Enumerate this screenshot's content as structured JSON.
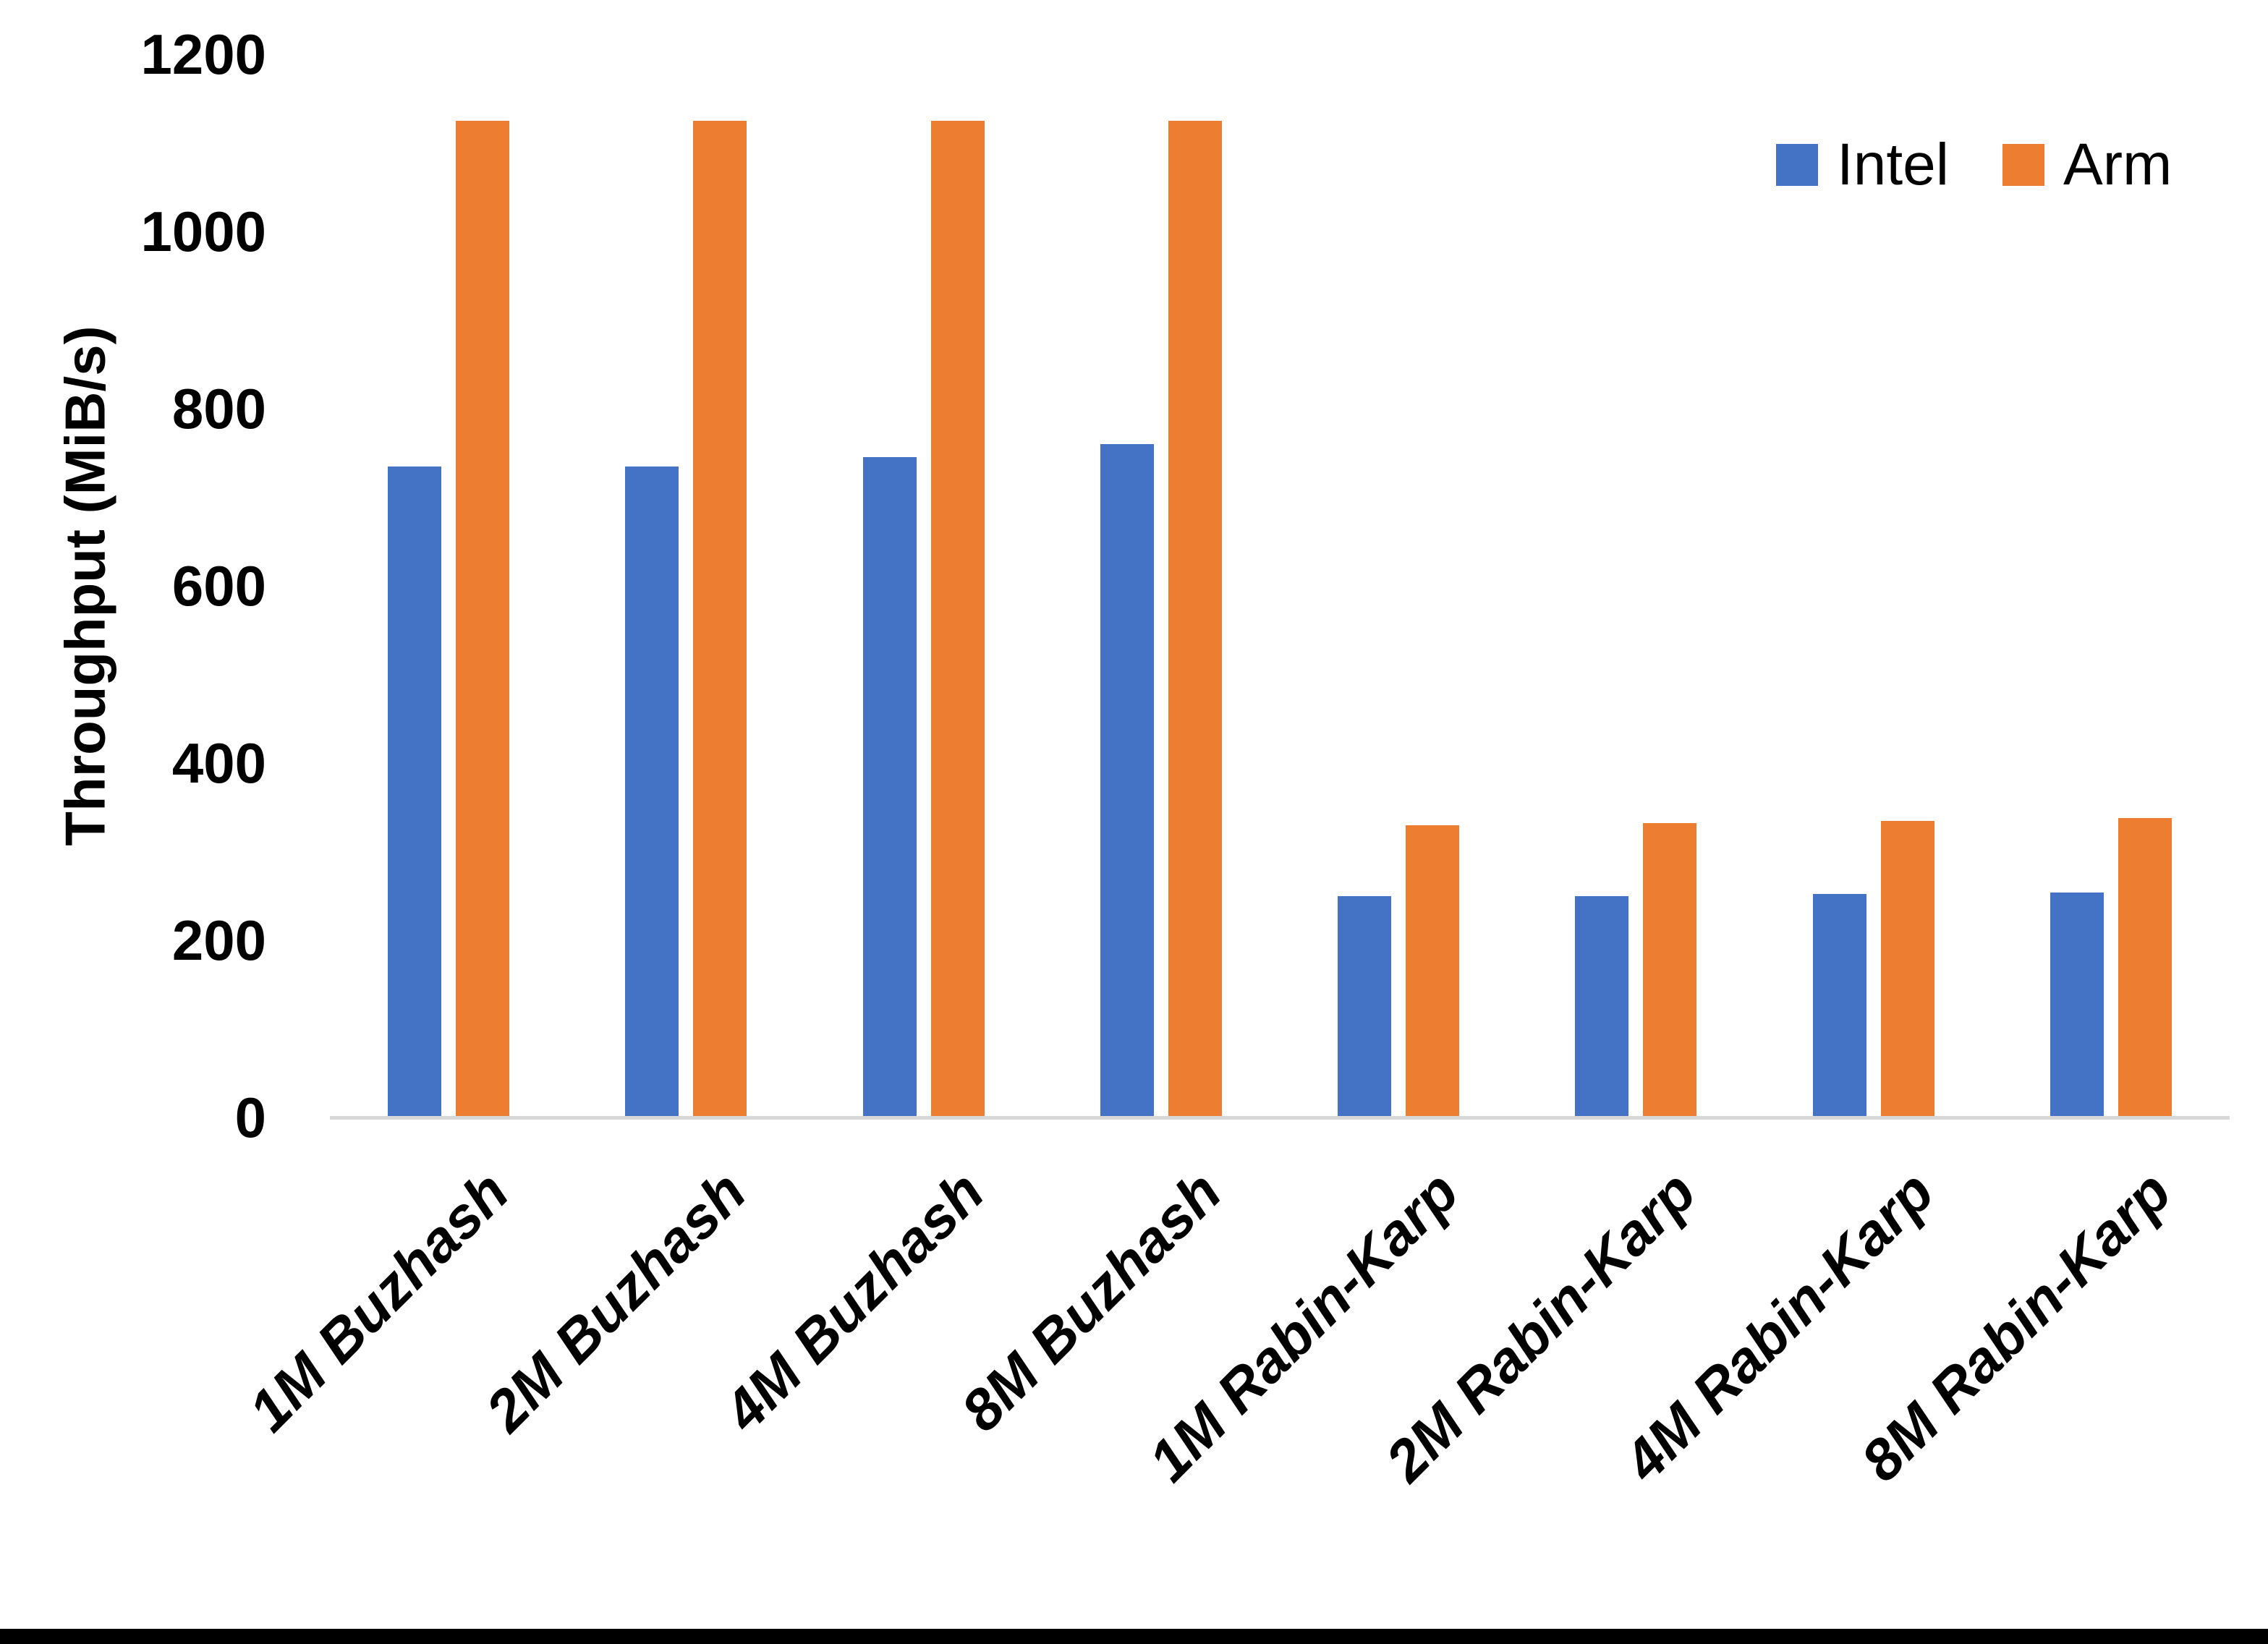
{
  "chart_data": {
    "type": "bar",
    "title": "",
    "ylabel": "Throughput (MiB/s)",
    "xlabel": "",
    "categories": [
      "1M Buzhash",
      "2M Buzhash",
      "4M Buzhash",
      "8M Buzhash",
      "1M Rabin-Karp",
      "2M Rabin-Karp",
      "4M Rabin-Karp",
      "8M Rabin-Karp"
    ],
    "series": [
      {
        "name": "Intel",
        "color": "#4472C4",
        "values": [
          735,
          735,
          745,
          760,
          250,
          250,
          252,
          254
        ]
      },
      {
        "name": "Arm",
        "color": "#ED7D31",
        "values": [
          1125,
          1125,
          1125,
          1125,
          330,
          332,
          335,
          338
        ]
      }
    ],
    "ylim": [
      0,
      1200
    ],
    "yticks": [
      0,
      200,
      400,
      600,
      800,
      1000,
      1200
    ],
    "grid": "off",
    "legend_position": "top-right",
    "axis_line_color": "#D8D8D8",
    "text_color": "#000000",
    "background_color": "#FFFFFF"
  }
}
